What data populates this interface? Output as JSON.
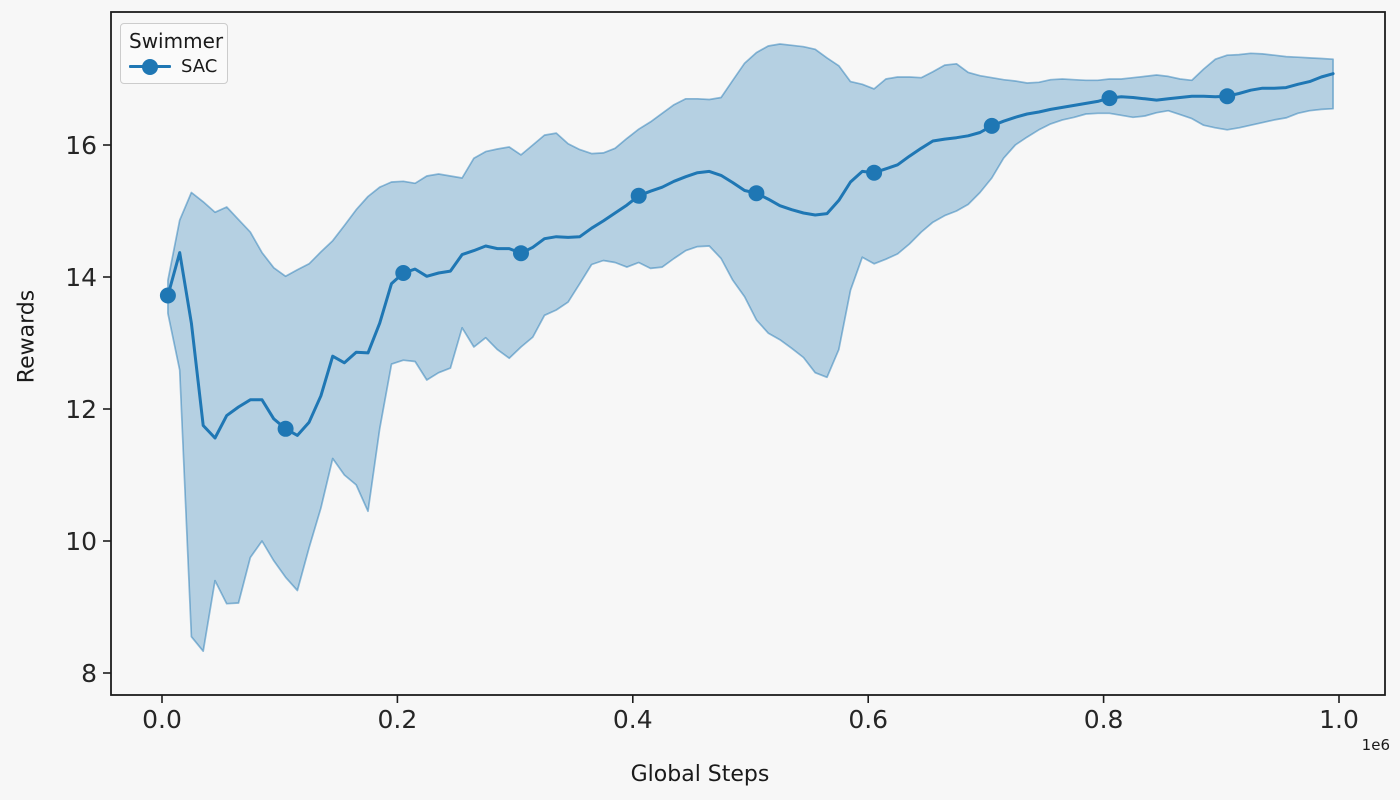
{
  "figure": {
    "background_color": "#f7f7f7",
    "axes": {
      "xlabel": "Global Steps",
      "ylabel": "Rewards",
      "offset_text": "1e6"
    },
    "legend": {
      "title": "Swimmer",
      "entries": [
        {
          "label": "SAC",
          "color": "#1f77b4",
          "marker": "circle-marker"
        }
      ],
      "position": "upper left"
    }
  },
  "chart_data": {
    "type": "line",
    "title": "",
    "xlabel": "Global Steps",
    "ylabel": "Rewards",
    "legend_title": "Swimmer",
    "legend_position": "upper left",
    "grid": false,
    "x_axis": {
      "ticks_e6": [
        0.0,
        0.2,
        0.4,
        0.6,
        0.8,
        1.0
      ],
      "tick_labels": [
        "0.0",
        "0.2",
        "0.4",
        "0.6",
        "0.8",
        "1.0"
      ],
      "offset_label": "1e6",
      "range_e6": [
        -0.043,
        1.039
      ]
    },
    "y_axis": {
      "ticks": [
        8,
        10,
        12,
        14,
        16
      ],
      "range": [
        7.67,
        18.02
      ]
    },
    "colors": {
      "line": "#1f77b4",
      "band_fill_alpha": 0.3,
      "band_edge_alpha": 0.48,
      "spine": "#1c1c1c",
      "tick_text": "#262626"
    },
    "series": [
      {
        "name": "SAC",
        "color": "#1f77b4",
        "marker": "o",
        "marker_every": 10,
        "x_steps": [
          5000,
          15000,
          25000,
          35000,
          45000,
          55000,
          65000,
          75000,
          85000,
          95000,
          105000,
          115000,
          125000,
          135000,
          145000,
          155000,
          165000,
          175000,
          185000,
          195000,
          205000,
          215000,
          225000,
          235000,
          245000,
          255000,
          265000,
          275000,
          285000,
          295000,
          305000,
          315000,
          325000,
          335000,
          345000,
          355000,
          365000,
          375000,
          385000,
          395000,
          405000,
          415000,
          425000,
          435000,
          445000,
          455000,
          465000,
          475000,
          485000,
          495000,
          505000,
          515000,
          525000,
          535000,
          545000,
          555000,
          565000,
          575000,
          585000,
          595000,
          605000,
          615000,
          625000,
          635000,
          645000,
          655000,
          665000,
          675000,
          685000,
          695000,
          705000,
          715000,
          725000,
          735000,
          745000,
          755000,
          765000,
          775000,
          785000,
          795000,
          805000,
          815000,
          825000,
          835000,
          845000,
          855000,
          865000,
          875000,
          885000,
          895000,
          905000,
          915000,
          925000,
          935000,
          945000,
          955000,
          965000,
          975000,
          985000,
          995000
        ],
        "mean": [
          13.72,
          14.37,
          13.3,
          11.75,
          11.56,
          11.9,
          12.03,
          12.14,
          12.14,
          11.85,
          11.7,
          11.6,
          11.8,
          12.2,
          12.8,
          12.7,
          12.86,
          12.85,
          13.3,
          13.9,
          14.06,
          14.12,
          14.01,
          14.06,
          14.09,
          14.34,
          14.4,
          14.47,
          14.43,
          14.43,
          14.36,
          14.45,
          14.58,
          14.61,
          14.6,
          14.61,
          14.74,
          14.85,
          14.97,
          15.09,
          15.23,
          15.3,
          15.36,
          15.45,
          15.52,
          15.58,
          15.6,
          15.54,
          15.43,
          15.31,
          15.27,
          15.18,
          15.08,
          15.02,
          14.97,
          14.94,
          14.96,
          15.16,
          15.44,
          15.6,
          15.58,
          15.64,
          15.7,
          15.83,
          15.95,
          16.06,
          16.09,
          16.11,
          16.14,
          16.19,
          16.29,
          16.36,
          16.42,
          16.47,
          16.5,
          16.54,
          16.57,
          16.6,
          16.63,
          16.66,
          16.71,
          16.73,
          16.72,
          16.7,
          16.68,
          16.7,
          16.72,
          16.74,
          16.74,
          16.73,
          16.74,
          16.78,
          16.83,
          16.86,
          16.86,
          16.87,
          16.92,
          16.96,
          17.03,
          17.08
        ],
        "ci_lower": [
          13.45,
          12.59,
          8.55,
          8.33,
          9.4,
          9.05,
          9.06,
          9.75,
          10.0,
          9.7,
          9.45,
          9.25,
          9.9,
          10.5,
          11.25,
          11.0,
          10.85,
          10.45,
          11.7,
          12.68,
          12.74,
          12.72,
          12.44,
          12.55,
          12.62,
          13.23,
          12.94,
          13.08,
          12.9,
          12.77,
          12.94,
          13.09,
          13.42,
          13.5,
          13.62,
          13.9,
          14.19,
          14.25,
          14.22,
          14.15,
          14.22,
          14.13,
          14.15,
          14.28,
          14.4,
          14.46,
          14.47,
          14.28,
          13.95,
          13.7,
          13.35,
          13.15,
          13.05,
          12.92,
          12.78,
          12.55,
          12.48,
          12.9,
          13.8,
          14.3,
          14.2,
          14.27,
          14.35,
          14.5,
          14.68,
          14.83,
          14.93,
          15.0,
          15.1,
          15.28,
          15.5,
          15.8,
          16.0,
          16.12,
          16.23,
          16.32,
          16.38,
          16.42,
          16.47,
          16.48,
          16.48,
          16.45,
          16.42,
          16.44,
          16.49,
          16.52,
          16.46,
          16.4,
          16.3,
          16.26,
          16.23,
          16.26,
          16.3,
          16.34,
          16.38,
          16.41,
          16.48,
          16.52,
          16.54,
          16.55
        ],
        "ci_upper": [
          13.95,
          14.86,
          15.28,
          15.14,
          14.98,
          15.06,
          14.87,
          14.68,
          14.37,
          14.14,
          14.01,
          14.11,
          14.2,
          14.38,
          14.55,
          14.78,
          15.02,
          15.22,
          15.36,
          15.44,
          15.45,
          15.42,
          15.53,
          15.56,
          15.53,
          15.5,
          15.8,
          15.9,
          15.94,
          15.97,
          15.85,
          16.0,
          16.15,
          16.18,
          16.02,
          15.93,
          15.87,
          15.88,
          15.95,
          16.1,
          16.24,
          16.35,
          16.48,
          16.61,
          16.7,
          16.7,
          16.69,
          16.72,
          16.98,
          17.24,
          17.4,
          17.5,
          17.53,
          17.51,
          17.49,
          17.45,
          17.32,
          17.2,
          16.96,
          16.92,
          16.85,
          17.0,
          17.03,
          17.03,
          17.02,
          17.11,
          17.21,
          17.23,
          17.1,
          17.05,
          17.02,
          16.99,
          16.97,
          16.94,
          16.95,
          16.99,
          17.0,
          16.99,
          16.98,
          16.98,
          17.0,
          17.0,
          17.02,
          17.04,
          17.06,
          17.04,
          17.0,
          16.98,
          17.15,
          17.3,
          17.36,
          17.37,
          17.39,
          17.38,
          17.36,
          17.34,
          17.33,
          17.32,
          17.31,
          17.3
        ]
      }
    ]
  }
}
